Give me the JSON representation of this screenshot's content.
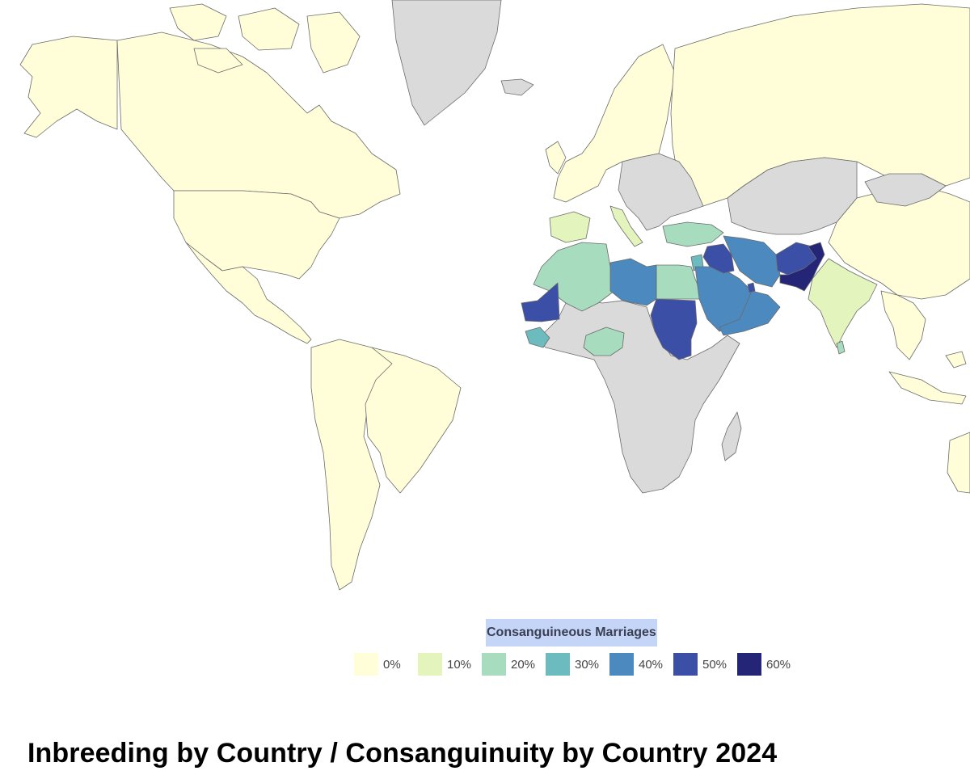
{
  "title": "Inbreeding by Country / Consanguinuity by Country 2024",
  "legend": {
    "title": "Consanguineous Marriages",
    "title_highlight": "#c5d5f7",
    "items": [
      {
        "label": "0%",
        "color": "#fffed9"
      },
      {
        "label": "10%",
        "color": "#e3f5bd"
      },
      {
        "label": "20%",
        "color": "#a7dcbf"
      },
      {
        "label": "30%",
        "color": "#6cbbbf"
      },
      {
        "label": "40%",
        "color": "#4b89be"
      },
      {
        "label": "50%",
        "color": "#3c4fa6"
      },
      {
        "label": "60%",
        "color": "#242576"
      }
    ]
  },
  "no_data_color": "#dadada",
  "map_data": {
    "type": "choropleth",
    "metric": "Consanguineous Marriages",
    "regions": [
      {
        "region": "Pakistan",
        "bin": "60%"
      },
      {
        "region": "Afghanistan",
        "bin": "50%"
      },
      {
        "region": "Sudan",
        "bin": "50%"
      },
      {
        "region": "Mauritania",
        "bin": "50%"
      },
      {
        "region": "Iraq",
        "bin": "50%"
      },
      {
        "region": "Saudi Arabia",
        "bin": "40%"
      },
      {
        "region": "Iran",
        "bin": "40%"
      },
      {
        "region": "Libya",
        "bin": "40%"
      },
      {
        "region": "Oman",
        "bin": "40%"
      },
      {
        "region": "Yemen",
        "bin": "40%"
      },
      {
        "region": "Qatar",
        "bin": "50%"
      },
      {
        "region": "Jordan",
        "bin": "30%"
      },
      {
        "region": "Guinea",
        "bin": "30%"
      },
      {
        "region": "Egypt",
        "bin": "20%"
      },
      {
        "region": "Algeria",
        "bin": "20%"
      },
      {
        "region": "Morocco",
        "bin": "20%"
      },
      {
        "region": "Tunisia",
        "bin": "20%"
      },
      {
        "region": "Turkey",
        "bin": "20%"
      },
      {
        "region": "Nigeria",
        "bin": "20%"
      },
      {
        "region": "Western Sahara",
        "bin": "20%"
      },
      {
        "region": "India",
        "bin": "10%"
      },
      {
        "region": "Sri Lanka",
        "bin": "20%"
      },
      {
        "region": "Bangladesh",
        "bin": "10%"
      },
      {
        "region": "Italy",
        "bin": "10%"
      },
      {
        "region": "Spain",
        "bin": "10%"
      },
      {
        "region": "United States",
        "bin": "0%"
      },
      {
        "region": "Canada",
        "bin": "0%"
      },
      {
        "region": "Alaska",
        "bin": "0%"
      },
      {
        "region": "Mexico & Central America",
        "bin": "0%"
      },
      {
        "region": "South America",
        "bin": "0%"
      },
      {
        "region": "Brazil",
        "bin": "0%"
      },
      {
        "region": "Russia",
        "bin": "0%"
      },
      {
        "region": "China",
        "bin": "0%"
      },
      {
        "region": "Northern & Western Europe",
        "bin": "0%"
      },
      {
        "region": "Australia",
        "bin": "0%"
      },
      {
        "region": "Southeast Asia",
        "bin": "0%"
      },
      {
        "region": "Greenland",
        "bin": "no data"
      },
      {
        "region": "Sub-Saharan Africa",
        "bin": "no data"
      },
      {
        "region": "Madagascar",
        "bin": "no data"
      },
      {
        "region": "Central Asia",
        "bin": "no data"
      },
      {
        "region": "Mongolia",
        "bin": "no data"
      },
      {
        "region": "Eastern Europe & Balkans",
        "bin": "no data"
      },
      {
        "region": "Iceland",
        "bin": "no data"
      }
    ]
  }
}
